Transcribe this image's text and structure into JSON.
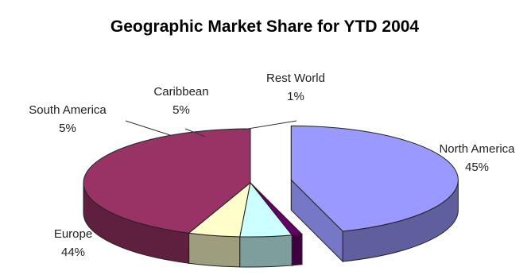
{
  "chart_data": {
    "type": "pie",
    "title": "Geographic Market Share for YTD 2004",
    "slices": [
      {
        "label": "North America",
        "value": 45,
        "value_label": "45%",
        "color": "#9999ff",
        "exploded": true
      },
      {
        "label": "Rest World",
        "value": 1,
        "value_label": "1%",
        "color": "#660066",
        "exploded": false
      },
      {
        "label": "Caribbean",
        "value": 5,
        "value_label": "5%",
        "color": "#ccffff",
        "exploded": false
      },
      {
        "label": "South America",
        "value": 5,
        "value_label": "5%",
        "color": "#ffffcc",
        "exploded": false
      },
      {
        "label": "Europe",
        "value": 44,
        "value_label": "44%",
        "color": "#993366",
        "exploded": false
      }
    ],
    "style": "3d",
    "legend": "none"
  }
}
